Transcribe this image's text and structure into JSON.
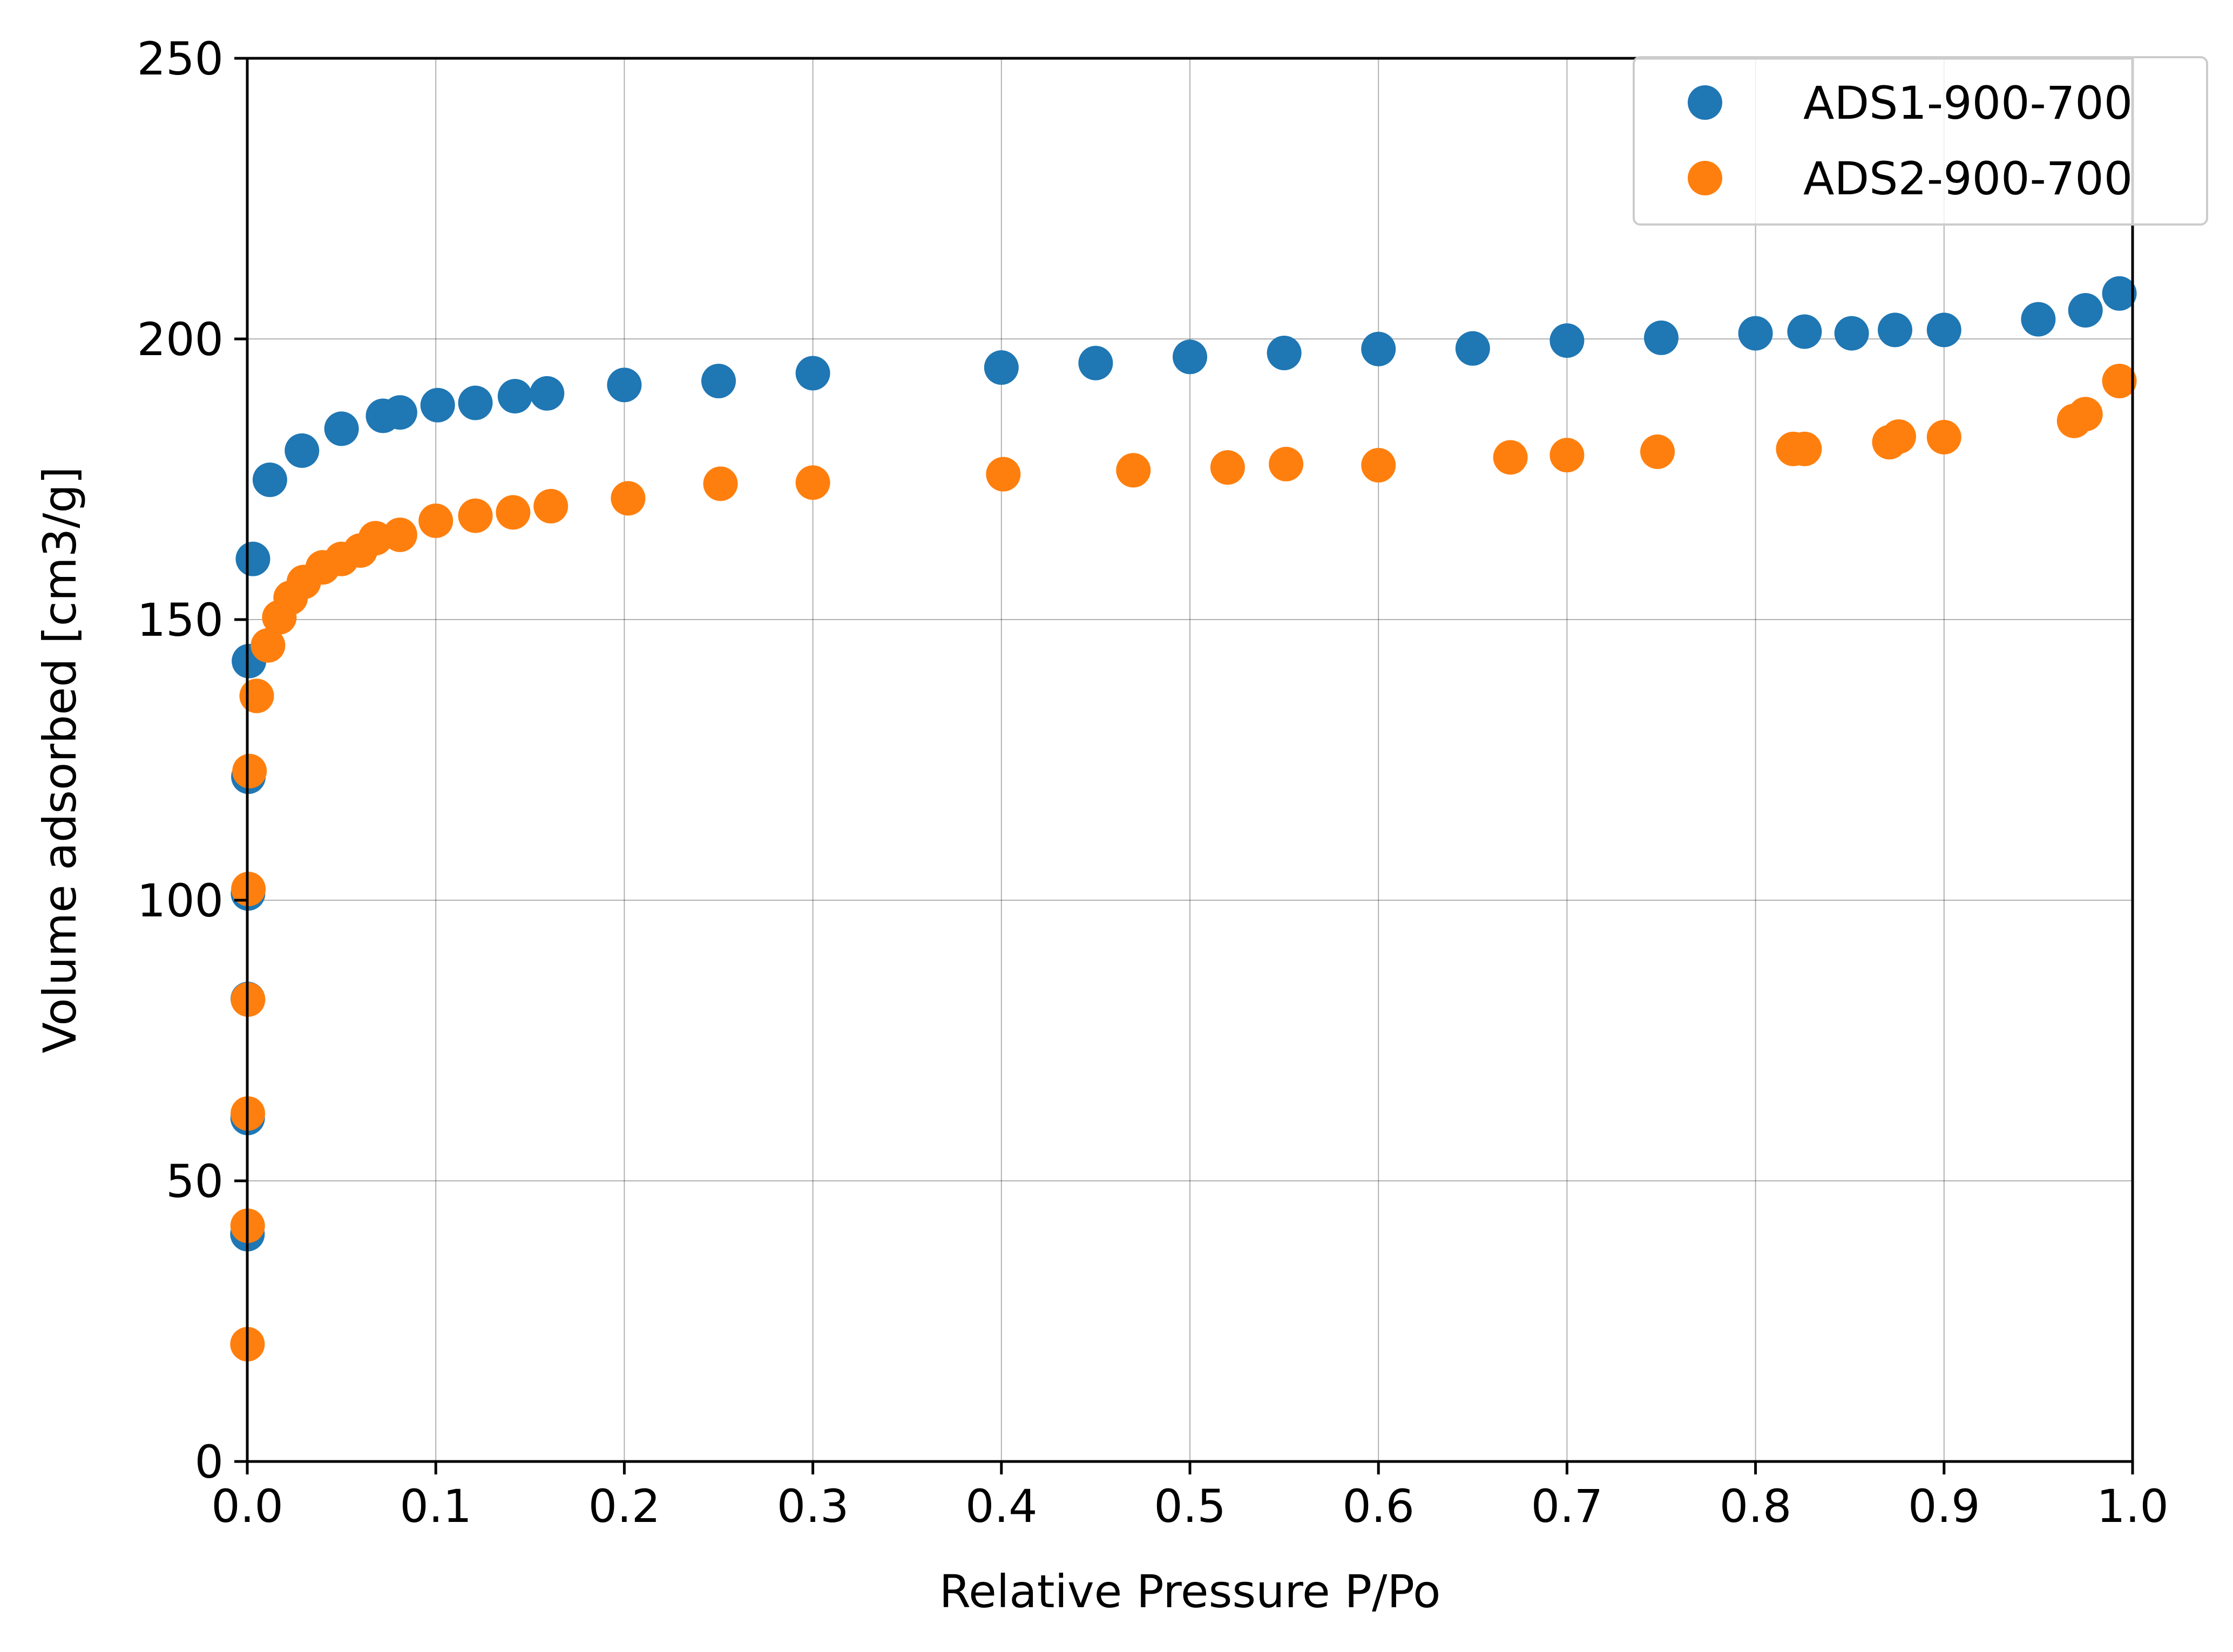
{
  "chart_data": {
    "type": "scatter",
    "title": "",
    "xlabel": "Relative Pressure P/Po",
    "ylabel": "Volume adsorbed [cm3/g]",
    "xlim": [
      0.0,
      1.0
    ],
    "ylim": [
      0,
      250
    ],
    "xticks": [
      "0.0",
      "0.1",
      "0.2",
      "0.3",
      "0.4",
      "0.5",
      "0.6",
      "0.7",
      "0.8",
      "0.9",
      "1.0"
    ],
    "yticks": [
      "0",
      "50",
      "100",
      "150",
      "200",
      "250"
    ],
    "grid": true,
    "legend_position": "top-right",
    "colors": {
      "ADS1-900-700": "#1f77b4",
      "ADS2-900-700": "#ff7f0e"
    },
    "series": [
      {
        "name": "ADS1-900-700",
        "color": "#1f77b4",
        "points": [
          [
            0.0001,
            40.5
          ],
          [
            0.0002,
            61.2
          ],
          [
            0.0003,
            82.4
          ],
          [
            0.0004,
            101.2
          ],
          [
            0.0006,
            122.0
          ],
          [
            0.0009,
            142.6
          ],
          [
            0.003,
            160.8
          ],
          [
            0.012,
            174.9
          ],
          [
            0.029,
            180.1
          ],
          [
            0.05,
            184.0
          ],
          [
            0.072,
            186.3
          ],
          [
            0.081,
            186.9
          ],
          [
            0.101,
            188.2
          ],
          [
            0.121,
            188.6
          ],
          [
            0.142,
            189.8
          ],
          [
            0.159,
            190.3
          ],
          [
            0.2,
            191.8
          ],
          [
            0.25,
            192.5
          ],
          [
            0.3,
            193.9
          ],
          [
            0.4,
            194.9
          ],
          [
            0.45,
            195.7
          ],
          [
            0.5,
            196.8
          ],
          [
            0.55,
            197.5
          ],
          [
            0.6,
            198.2
          ],
          [
            0.65,
            198.3
          ],
          [
            0.7,
            199.7
          ],
          [
            0.75,
            200.2
          ],
          [
            0.8,
            201.0
          ],
          [
            0.826,
            201.3
          ],
          [
            0.851,
            201.0
          ],
          [
            0.874,
            201.6
          ],
          [
            0.9,
            201.6
          ],
          [
            0.95,
            203.5
          ],
          [
            0.975,
            205.1
          ],
          [
            0.993,
            208.1
          ]
        ]
      },
      {
        "name": "ADS2-900-700",
        "color": "#ff7f0e",
        "points": [
          [
            0.0001,
            20.9
          ],
          [
            0.0002,
            42.0
          ],
          [
            0.0003,
            62.0
          ],
          [
            0.0004,
            82.3
          ],
          [
            0.0006,
            102.0
          ],
          [
            0.0012,
            123.0
          ],
          [
            0.005,
            136.4
          ],
          [
            0.011,
            145.4
          ],
          [
            0.017,
            150.4
          ],
          [
            0.023,
            153.9
          ],
          [
            0.03,
            156.7
          ],
          [
            0.04,
            159.3
          ],
          [
            0.05,
            160.8
          ],
          [
            0.06,
            162.3
          ],
          [
            0.068,
            164.5
          ],
          [
            0.081,
            165.1
          ],
          [
            0.1,
            167.6
          ],
          [
            0.121,
            168.5
          ],
          [
            0.141,
            169.1
          ],
          [
            0.161,
            170.2
          ],
          [
            0.202,
            171.6
          ],
          [
            0.251,
            174.2
          ],
          [
            0.3,
            174.4
          ],
          [
            0.401,
            175.9
          ],
          [
            0.47,
            176.6
          ],
          [
            0.52,
            177.1
          ],
          [
            0.551,
            177.7
          ],
          [
            0.6,
            177.5
          ],
          [
            0.67,
            178.9
          ],
          [
            0.7,
            179.3
          ],
          [
            0.748,
            179.9
          ],
          [
            0.82,
            180.4
          ],
          [
            0.826,
            180.4
          ],
          [
            0.871,
            181.6
          ],
          [
            0.876,
            182.6
          ],
          [
            0.9,
            182.5
          ],
          [
            0.969,
            185.4
          ],
          [
            0.975,
            186.6
          ],
          [
            0.993,
            192.5
          ]
        ]
      }
    ]
  }
}
